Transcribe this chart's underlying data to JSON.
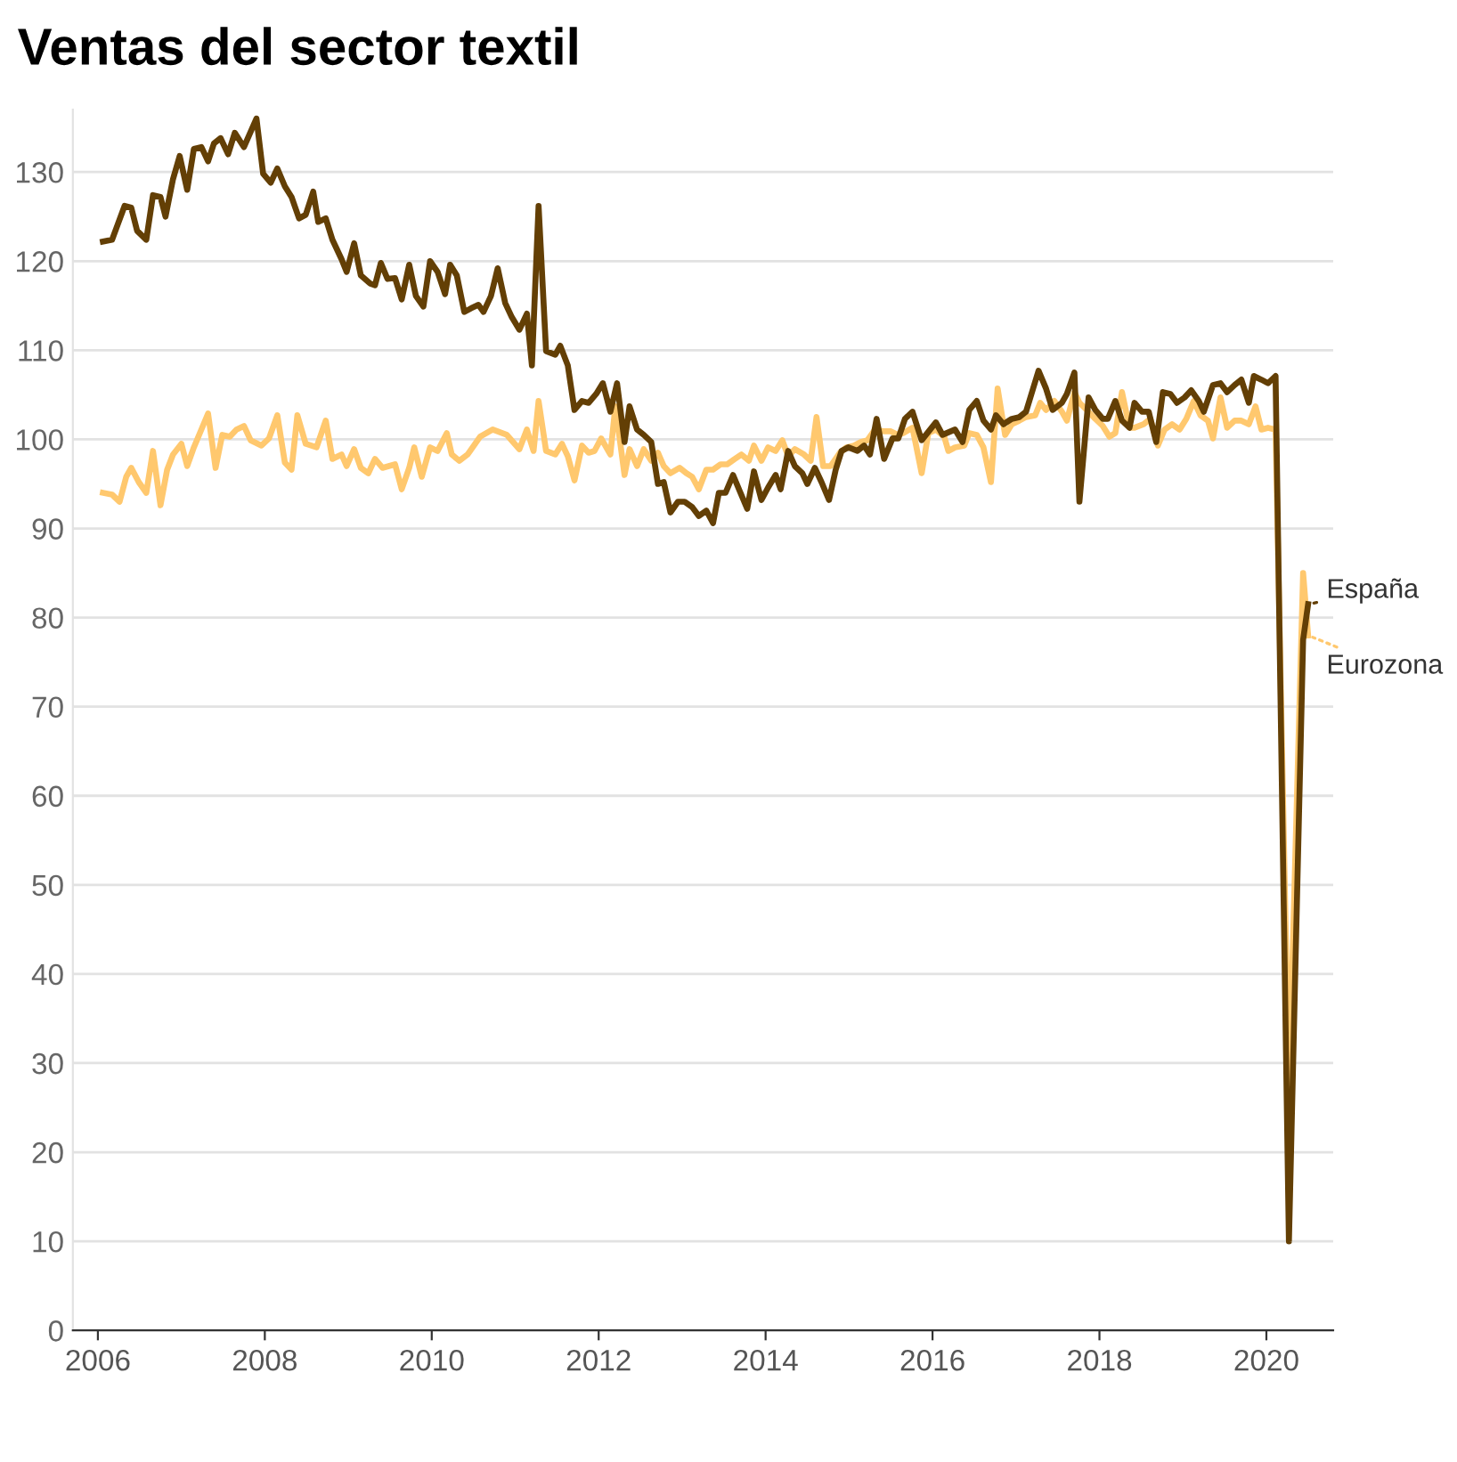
{
  "chart_data": {
    "type": "line",
    "title": "Ventas del sector textil",
    "xlim": [
      2005.7,
      2020.8
    ],
    "xticks": [
      2006,
      2008,
      2010,
      2012,
      2014,
      2016,
      2018,
      2020
    ],
    "ylim": [
      0,
      137
    ],
    "yticks": [
      0,
      10,
      20,
      30,
      40,
      50,
      60,
      70,
      80,
      90,
      100,
      110,
      120,
      130
    ],
    "grid": "y",
    "legend": "right",
    "line_style": "solid",
    "marker": "none",
    "series": [
      {
        "name": "España",
        "color": "#633f05",
        "x": [
          2006.06,
          2006.17,
          2006.32,
          2006.4,
          2006.47,
          2006.58,
          2006.66,
          2006.75,
          2006.81,
          2006.9,
          2006.98,
          2007.07,
          2007.15,
          2007.24,
          2007.32,
          2007.39,
          2007.47,
          2007.56,
          2007.64,
          2007.75,
          2007.9,
          2007.98,
          2008.07,
          2008.15,
          2008.24,
          2008.32,
          2008.41,
          2008.49,
          2008.58,
          2008.64,
          2008.73,
          2008.81,
          2008.92,
          2008.98,
          2009.07,
          2009.15,
          2009.26,
          2009.32,
          2009.39,
          2009.47,
          2009.56,
          2009.64,
          2009.73,
          2009.81,
          2009.9,
          2009.98,
          2010.07,
          2010.16,
          2010.22,
          2010.3,
          2010.39,
          2010.47,
          2010.56,
          2010.62,
          2010.71,
          2010.79,
          2010.88,
          2010.96,
          2011.05,
          2011.14,
          2011.2,
          2011.28,
          2011.37,
          2011.48,
          2011.54,
          2011.63,
          2011.71,
          2011.8,
          2011.88,
          2011.97,
          2012.05,
          2012.14,
          2012.22,
          2012.31,
          2012.37,
          2012.46,
          2012.54,
          2012.63,
          2012.71,
          2012.78,
          2012.86,
          2012.95,
          2013.03,
          2013.12,
          2013.2,
          2013.29,
          2013.37,
          2013.44,
          2013.52,
          2013.61,
          2013.69,
          2013.78,
          2013.86,
          2013.95,
          2014.03,
          2014.12,
          2014.18,
          2014.27,
          2014.35,
          2014.44,
          2014.5,
          2014.59,
          2014.67,
          2014.76,
          2014.84,
          2014.91,
          2014.99,
          2015.1,
          2015.18,
          2015.25,
          2015.33,
          2015.42,
          2015.52,
          2015.59,
          2015.67,
          2015.76,
          2015.87,
          2016.04,
          2016.12,
          2016.27,
          2016.36,
          2016.44,
          2016.53,
          2016.61,
          2016.7,
          2016.76,
          2016.85,
          2016.95,
          2017.04,
          2017.12,
          2017.27,
          2017.36,
          2017.44,
          2017.55,
          2017.61,
          2017.7,
          2017.76,
          2017.87,
          2017.95,
          2018.04,
          2018.1,
          2018.19,
          2018.27,
          2018.36,
          2018.42,
          2018.51,
          2018.59,
          2018.68,
          2018.76,
          2018.85,
          2018.93,
          2019.02,
          2019.1,
          2019.19,
          2019.25,
          2019.36,
          2019.45,
          2019.53,
          2019.62,
          2019.7,
          2019.79,
          2019.85,
          2019.94,
          2020.02,
          2020.11,
          2020.27,
          2020.44,
          2020.5
        ],
        "values": [
          122.2,
          122.4,
          126.2,
          126.0,
          123.4,
          122.4,
          127.4,
          127.2,
          125.0,
          129.2,
          131.8,
          128.0,
          132.6,
          132.8,
          131.2,
          133.2,
          133.8,
          132.0,
          134.4,
          132.8,
          136.0,
          129.8,
          128.8,
          130.4,
          128.4,
          127.2,
          124.8,
          125.2,
          127.8,
          124.4,
          124.8,
          122.4,
          120.2,
          118.8,
          122.0,
          118.4,
          117.5,
          117.3,
          119.8,
          118.0,
          118.1,
          115.7,
          119.6,
          116.1,
          114.9,
          120.0,
          118.8,
          116.3,
          119.6,
          118.4,
          114.3,
          114.7,
          115.1,
          114.3,
          116.1,
          119.2,
          115.3,
          113.7,
          112.3,
          114.1,
          108.3,
          126.2,
          109.9,
          109.5,
          110.5,
          108.3,
          103.3,
          104.3,
          104.1,
          105.1,
          106.3,
          103.1,
          106.3,
          99.7,
          103.7,
          101.1,
          100.5,
          99.7,
          95.0,
          95.2,
          91.8,
          93.0,
          93.0,
          92.4,
          91.4,
          92.0,
          90.6,
          94.0,
          94.0,
          96.0,
          94.2,
          92.2,
          96.4,
          93.2,
          94.6,
          96.0,
          94.4,
          98.7,
          97.0,
          96.2,
          95.0,
          96.8,
          95.2,
          93.2,
          96.6,
          98.7,
          99.1,
          98.7,
          99.3,
          98.3,
          102.3,
          97.8,
          100.1,
          100.1,
          102.3,
          103.1,
          99.9,
          101.9,
          100.5,
          101.1,
          99.7,
          103.3,
          104.3,
          102.1,
          101.1,
          102.7,
          101.7,
          102.3,
          102.5,
          103.1,
          107.7,
          105.7,
          103.3,
          104.1,
          105.1,
          107.5,
          93.0,
          104.7,
          103.3,
          102.3,
          102.3,
          104.3,
          102.1,
          101.3,
          104.1,
          103.1,
          103.1,
          99.7,
          105.3,
          105.1,
          104.1,
          104.7,
          105.5,
          104.3,
          103.1,
          106.1,
          106.3,
          105.3,
          106.1,
          106.7,
          104.1,
          107.1,
          106.7,
          106.3,
          107.1,
          10,
          77.5,
          81.5
        ]
      },
      {
        "name": "Eurozona",
        "color": "#ffc86e",
        "x": [
          2006.06,
          2006.17,
          2006.26,
          2006.34,
          2006.4,
          2006.49,
          2006.58,
          2006.66,
          2006.75,
          2006.83,
          2006.9,
          2007.0,
          2007.07,
          2007.15,
          2007.32,
          2007.41,
          2007.49,
          2007.58,
          2007.66,
          2007.75,
          2007.83,
          2007.96,
          2008.05,
          2008.15,
          2008.24,
          2008.32,
          2008.39,
          2008.49,
          2008.62,
          2008.73,
          2008.81,
          2008.92,
          2008.98,
          2009.07,
          2009.15,
          2009.24,
          2009.32,
          2009.41,
          2009.56,
          2009.64,
          2009.73,
          2009.79,
          2009.88,
          2009.98,
          2010.07,
          2010.18,
          2010.24,
          2010.33,
          2010.43,
          2010.58,
          2010.73,
          2010.9,
          2011.05,
          2011.14,
          2011.22,
          2011.28,
          2011.37,
          2011.48,
          2011.56,
          2011.63,
          2011.71,
          2011.8,
          2011.88,
          2011.95,
          2012.03,
          2012.14,
          2012.2,
          2012.31,
          2012.37,
          2012.46,
          2012.54,
          2012.63,
          2012.71,
          2012.78,
          2012.86,
          2012.97,
          2013.05,
          2013.12,
          2013.2,
          2013.29,
          2013.37,
          2013.46,
          2013.54,
          2013.63,
          2013.71,
          2013.8,
          2013.86,
          2013.95,
          2014.03,
          2014.12,
          2014.2,
          2014.27,
          2014.35,
          2014.46,
          2014.54,
          2014.61,
          2014.69,
          2014.78,
          2014.89,
          2014.97,
          2015.06,
          2015.14,
          2015.22,
          2015.31,
          2015.42,
          2015.5,
          2015.59,
          2015.65,
          2015.76,
          2015.87,
          2015.95,
          2016.04,
          2016.14,
          2016.19,
          2016.27,
          2016.38,
          2016.44,
          2016.53,
          2016.61,
          2016.7,
          2016.78,
          2016.87,
          2016.95,
          2017.04,
          2017.12,
          2017.23,
          2017.29,
          2017.36,
          2017.46,
          2017.55,
          2017.61,
          2017.7,
          2017.76,
          2017.87,
          2017.95,
          2018.04,
          2018.12,
          2018.19,
          2018.27,
          2018.36,
          2018.42,
          2018.53,
          2018.61,
          2018.7,
          2018.78,
          2018.87,
          2018.96,
          2019.04,
          2019.13,
          2019.21,
          2019.3,
          2019.36,
          2019.45,
          2019.53,
          2019.62,
          2019.7,
          2019.79,
          2019.87,
          2019.94,
          2020.02,
          2020.11,
          2020.27,
          2020.44,
          2020.5
        ],
        "values": [
          94.0,
          93.8,
          93.0,
          95.8,
          96.8,
          95.2,
          94.0,
          98.7,
          92.6,
          96.6,
          98.3,
          99.5,
          97.0,
          99.1,
          102.9,
          96.8,
          100.5,
          100.3,
          101.1,
          101.5,
          99.9,
          99.3,
          100.1,
          102.7,
          97.4,
          96.6,
          102.7,
          99.5,
          99.1,
          102.1,
          97.8,
          98.3,
          97.0,
          98.9,
          96.8,
          96.2,
          97.8,
          96.8,
          97.2,
          94.4,
          96.8,
          99.1,
          95.8,
          99.1,
          98.7,
          100.7,
          98.3,
          97.6,
          98.3,
          100.3,
          101.1,
          100.5,
          98.9,
          101.1,
          98.7,
          104.3,
          98.7,
          98.3,
          99.5,
          98.1,
          95.4,
          99.3,
          98.5,
          98.7,
          100.1,
          98.3,
          103.7,
          96.0,
          98.9,
          97.0,
          98.9,
          97.6,
          98.5,
          97.0,
          96.2,
          96.8,
          96.2,
          95.8,
          94.4,
          96.6,
          96.6,
          97.2,
          97.2,
          97.8,
          98.3,
          97.6,
          99.3,
          97.6,
          99.1,
          98.7,
          99.9,
          98.1,
          98.9,
          98.3,
          97.6,
          102.5,
          97.0,
          97.0,
          98.5,
          99.1,
          99.3,
          99.7,
          99.9,
          101.1,
          100.9,
          100.9,
          100.5,
          100.7,
          101.3,
          96.2,
          100.7,
          101.1,
          100.3,
          98.7,
          99.1,
          99.3,
          100.7,
          100.5,
          99.1,
          95.2,
          105.7,
          100.5,
          101.7,
          102.1,
          102.5,
          102.7,
          104.1,
          103.3,
          104.3,
          103.1,
          102.1,
          105.3,
          104.1,
          103.1,
          102.3,
          101.5,
          100.3,
          100.7,
          105.3,
          101.3,
          101.3,
          101.7,
          102.3,
          99.3,
          101.1,
          101.7,
          101.1,
          102.3,
          104.3,
          102.7,
          102.1,
          100.1,
          104.7,
          101.3,
          102.1,
          102.1,
          101.7,
          103.7,
          101.1,
          101.3,
          101.1,
          27,
          85.0,
          78.0
        ]
      }
    ]
  }
}
